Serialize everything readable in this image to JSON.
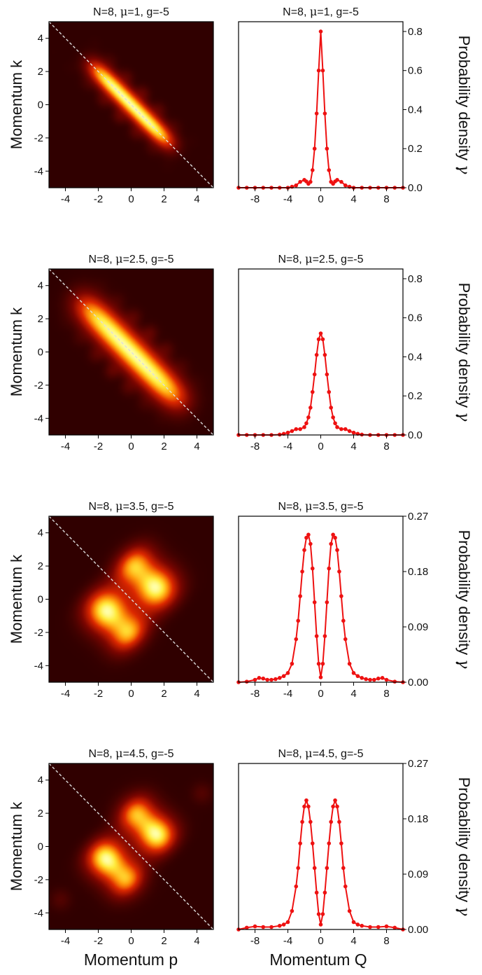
{
  "figure": {
    "left_xlabel": "Momentum p",
    "right_xlabel": "Momentum Q"
  },
  "colors": {
    "curve": "#ee1111",
    "diagonal": "#dddddd",
    "map_low": "#300000",
    "map_mid": "#d42000",
    "map_high": "#ffff90"
  },
  "chart_data": [
    {
      "panel": "heatmap",
      "type": "heatmap",
      "title": "N=8, μ=1, g=-5",
      "xlabel": "",
      "ylabel": "Momentum k",
      "xlim": [
        -5,
        5
      ],
      "ylim": [
        -5,
        5
      ],
      "xticks": [
        "-4",
        "-2",
        "0",
        "2",
        "4"
      ],
      "yticks": [
        "-4",
        "-2",
        "0",
        "2",
        "4"
      ],
      "diagonal": "k = -p",
      "colormap": "black-red-yellow",
      "description_values": {
        "band_halfwidth": 0.45,
        "band_length": 3.6,
        "side_fringes": true
      }
    },
    {
      "panel": "line",
      "type": "line",
      "title": "N=8, μ=1, g=-5",
      "xlabel": "",
      "ylabel": "Probability density γ",
      "xlim": [
        -10,
        10
      ],
      "ylim": [
        0,
        0.85
      ],
      "xticks": [
        "-8",
        "-4",
        "0",
        "4",
        "8"
      ],
      "yticks": [
        "0.0",
        "0.2",
        "0.4",
        "0.6",
        "0.8"
      ],
      "series": [
        {
          "x": [
            -10,
            -9,
            -8,
            -7,
            -6,
            -5,
            -4,
            -3.5,
            -3,
            -2.5,
            -2,
            -1.75,
            -1.5,
            -1.25,
            -1,
            -0.75,
            -0.5,
            -0.25,
            0,
            0.25,
            0.5,
            0.75,
            1,
            1.25,
            1.5,
            1.75,
            2,
            2.5,
            3,
            3.5,
            4,
            5,
            6,
            7,
            8,
            9,
            10
          ],
          "y": [
            0.0,
            0.0,
            0.0,
            0.0,
            0.0,
            0.0,
            0.0,
            0.005,
            0.012,
            0.03,
            0.04,
            0.032,
            0.02,
            0.03,
            0.09,
            0.2,
            0.38,
            0.6,
            0.8,
            0.6,
            0.38,
            0.2,
            0.09,
            0.03,
            0.02,
            0.032,
            0.04,
            0.03,
            0.012,
            0.005,
            0.0,
            0.0,
            0.0,
            0.0,
            0.0,
            0.0,
            0.0
          ]
        }
      ]
    },
    {
      "panel": "heatmap",
      "type": "heatmap",
      "title": "N=8, μ=2.5, g=-5",
      "xlabel": "",
      "ylabel": "Momentum k",
      "xlim": [
        -5,
        5
      ],
      "ylim": [
        -5,
        5
      ],
      "xticks": [
        "-4",
        "-2",
        "0",
        "2",
        "4"
      ],
      "yticks": [
        "-4",
        "-2",
        "0",
        "2",
        "4"
      ],
      "diagonal": "k = -p",
      "colormap": "black-red-yellow",
      "description_values": {
        "band_halfwidth": 0.7,
        "band_length": 4.6,
        "side_fringes": true
      }
    },
    {
      "panel": "line",
      "type": "line",
      "title": "N=8, μ=2.5, g=-5",
      "xlabel": "",
      "ylabel": "Probability density γ",
      "xlim": [
        -10,
        10
      ],
      "ylim": [
        0,
        0.85
      ],
      "xticks": [
        "-8",
        "-4",
        "0",
        "4",
        "8"
      ],
      "yticks": [
        "0.0",
        "0.2",
        "0.4",
        "0.6",
        "0.8"
      ],
      "series": [
        {
          "x": [
            -10,
            -9,
            -8,
            -7,
            -6,
            -5,
            -4.5,
            -4,
            -3.5,
            -3,
            -2.5,
            -2,
            -1.75,
            -1.5,
            -1.25,
            -1,
            -0.75,
            -0.5,
            -0.25,
            0,
            0.25,
            0.5,
            0.75,
            1,
            1.25,
            1.5,
            1.75,
            2,
            2.5,
            3,
            3.5,
            4,
            4.5,
            5,
            6,
            7,
            8,
            9,
            10
          ],
          "y": [
            0.0,
            0.0,
            0.0,
            0.0,
            0.0,
            0.002,
            0.006,
            0.012,
            0.02,
            0.03,
            0.03,
            0.04,
            0.06,
            0.09,
            0.14,
            0.22,
            0.31,
            0.41,
            0.49,
            0.52,
            0.49,
            0.41,
            0.31,
            0.22,
            0.14,
            0.09,
            0.06,
            0.04,
            0.03,
            0.03,
            0.02,
            0.012,
            0.006,
            0.002,
            0.0,
            0.0,
            0.0,
            0.0,
            0.0
          ]
        }
      ]
    },
    {
      "panel": "heatmap",
      "type": "heatmap",
      "title": "N=8, μ=3.5, g=-5",
      "xlabel": "",
      "ylabel": "Momentum k",
      "xlim": [
        -5,
        5
      ],
      "ylim": [
        -5,
        5
      ],
      "xticks": [
        "-4",
        "-2",
        "0",
        "2",
        "4"
      ],
      "yticks": [
        "-4",
        "-2",
        "0",
        "2",
        "4"
      ],
      "diagonal": "k = -p",
      "colormap": "black-red-yellow",
      "description_values": {
        "blob_offset": 1.55,
        "blob_length": 4.0,
        "blob_width": 0.95
      }
    },
    {
      "panel": "line",
      "type": "line",
      "title": "N=8, μ=3.5, g=-5",
      "xlabel": "",
      "ylabel": "Probability density γ",
      "xlim": [
        -10,
        10
      ],
      "ylim": [
        0,
        0.27
      ],
      "xticks": [
        "-8",
        "-4",
        "0",
        "4",
        "8"
      ],
      "yticks": [
        "0.00",
        "0.09",
        "0.18",
        "0.27"
      ],
      "series": [
        {
          "x": [
            -10,
            -9,
            -8,
            -7.5,
            -7,
            -6.5,
            -6,
            -5.5,
            -5,
            -4.5,
            -4,
            -3.5,
            -3,
            -2.75,
            -2.5,
            -2.25,
            -2,
            -1.75,
            -1.5,
            -1.25,
            -1,
            -0.75,
            -0.5,
            -0.25,
            0,
            0.25,
            0.5,
            0.75,
            1,
            1.25,
            1.5,
            1.75,
            2,
            2.25,
            2.5,
            2.75,
            3,
            3.5,
            4,
            4.5,
            5,
            5.5,
            6,
            6.5,
            7,
            7.5,
            8,
            9,
            10
          ],
          "y": [
            0.0,
            0.001,
            0.004,
            0.007,
            0.006,
            0.004,
            0.004,
            0.005,
            0.007,
            0.01,
            0.015,
            0.03,
            0.07,
            0.1,
            0.14,
            0.18,
            0.215,
            0.235,
            0.24,
            0.225,
            0.185,
            0.13,
            0.075,
            0.03,
            0.008,
            0.03,
            0.075,
            0.13,
            0.185,
            0.225,
            0.24,
            0.235,
            0.215,
            0.18,
            0.14,
            0.1,
            0.07,
            0.03,
            0.015,
            0.01,
            0.007,
            0.005,
            0.004,
            0.004,
            0.006,
            0.007,
            0.004,
            0.001,
            0.0
          ]
        }
      ]
    },
    {
      "panel": "heatmap",
      "type": "heatmap",
      "title": "N=8, μ=4.5, g=-5",
      "xlabel": "Momentum p",
      "ylabel": "Momentum k",
      "xlim": [
        -5,
        5
      ],
      "ylim": [
        -5,
        5
      ],
      "xticks": [
        "-4",
        "-2",
        "0",
        "2",
        "4"
      ],
      "yticks": [
        "-4",
        "-2",
        "0",
        "2",
        "4"
      ],
      "diagonal": "k = -p",
      "colormap": "black-red-yellow",
      "description_values": {
        "blob_offset": 1.6,
        "blob_length": 3.6,
        "blob_width": 0.85,
        "small_spots": true
      }
    },
    {
      "panel": "line",
      "type": "line",
      "title": "N=8, μ=4.5, g=-5",
      "xlabel": "Momentum Q",
      "ylabel": "Probability density γ",
      "xlim": [
        -10,
        10
      ],
      "ylim": [
        0,
        0.27
      ],
      "xticks": [
        "-8",
        "-4",
        "0",
        "4",
        "8"
      ],
      "yticks": [
        "0.00",
        "0.09",
        "0.18",
        "0.27"
      ],
      "series": [
        {
          "x": [
            -10,
            -9,
            -8,
            -7,
            -6,
            -5,
            -4.5,
            -4,
            -3.5,
            -3,
            -2.75,
            -2.5,
            -2.25,
            -2,
            -1.75,
            -1.5,
            -1.25,
            -1,
            -0.75,
            -0.5,
            -0.25,
            0,
            0.25,
            0.5,
            0.75,
            1,
            1.25,
            1.5,
            1.75,
            2,
            2.25,
            2.5,
            2.75,
            3,
            3.5,
            4,
            4.5,
            5,
            6,
            7,
            8,
            9,
            10
          ],
          "y": [
            0.0,
            0.003,
            0.005,
            0.004,
            0.004,
            0.006,
            0.008,
            0.012,
            0.03,
            0.07,
            0.1,
            0.14,
            0.175,
            0.2,
            0.21,
            0.2,
            0.175,
            0.14,
            0.1,
            0.06,
            0.025,
            0.008,
            0.025,
            0.06,
            0.1,
            0.14,
            0.175,
            0.2,
            0.21,
            0.2,
            0.175,
            0.14,
            0.1,
            0.07,
            0.03,
            0.012,
            0.008,
            0.006,
            0.004,
            0.004,
            0.005,
            0.003,
            0.0
          ]
        }
      ]
    }
  ]
}
